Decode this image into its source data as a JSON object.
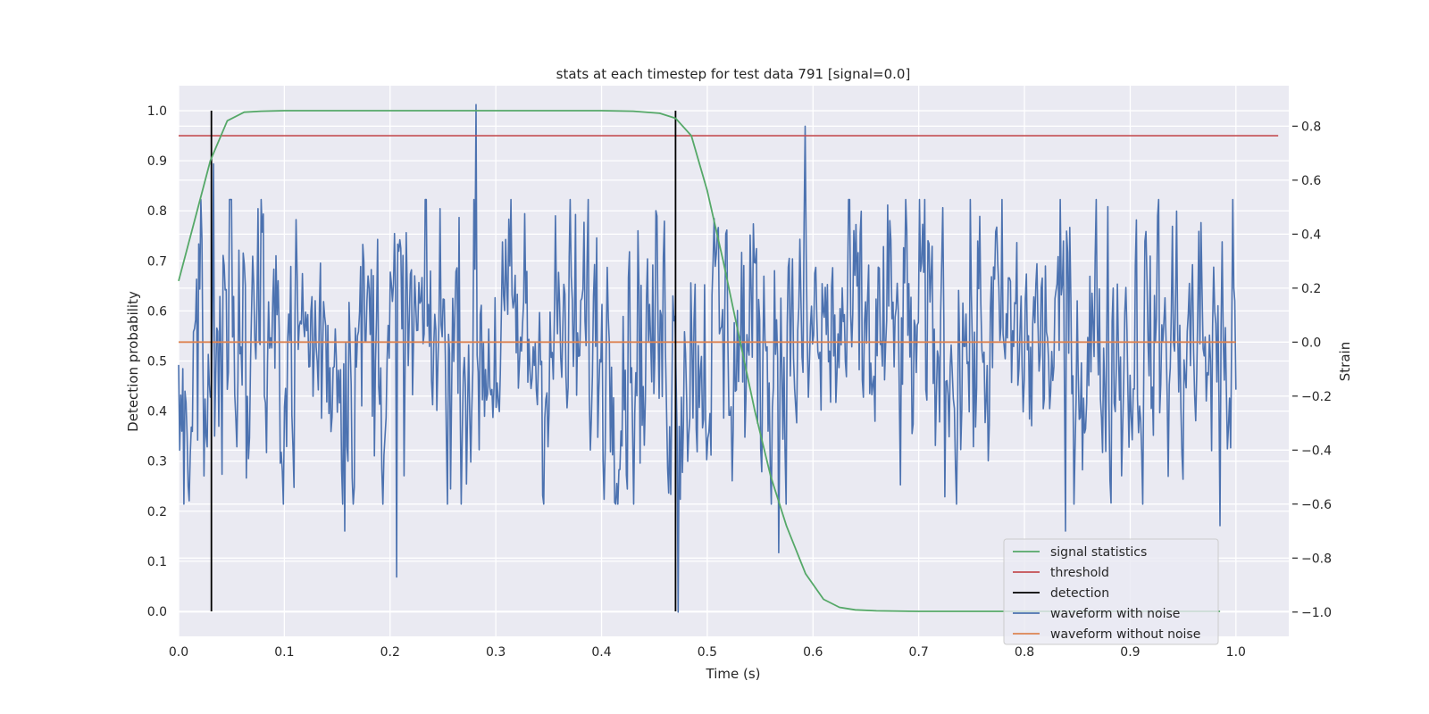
{
  "chart_data": {
    "type": "line",
    "title": "stats at each timestep for test data 791 [signal=0.0]",
    "xlabel": "Time (s)",
    "ylabel_left": "Detection probability",
    "ylabel_right": "Strain",
    "xlim": [
      0.0,
      1.05
    ],
    "ylim_left": [
      -0.05,
      1.05
    ],
    "ylim_right": [
      -1.09,
      0.95
    ],
    "x_ticks": [
      "0.0",
      "0.1",
      "0.2",
      "0.3",
      "0.4",
      "0.5",
      "0.6",
      "0.7",
      "0.8",
      "0.9",
      "1.0"
    ],
    "y_left_ticks": [
      "0.0",
      "0.1",
      "0.2",
      "0.3",
      "0.4",
      "0.5",
      "0.6",
      "0.7",
      "0.8",
      "0.9",
      "1.0"
    ],
    "y_right_ticks": [
      "−1.0",
      "−0.8",
      "−0.6",
      "−0.4",
      "−0.2",
      "0.0",
      "0.2",
      "0.4",
      "0.6",
      "0.8"
    ],
    "grid": true,
    "background": "#eaeaf2",
    "legend_position": "lower right",
    "series": [
      {
        "name": "signal statistics",
        "axis": "left",
        "color": "#55a868",
        "x": [
          0.0,
          0.015,
          0.03,
          0.046,
          0.062,
          0.078,
          0.1,
          0.15,
          0.2,
          0.3,
          0.4,
          0.43,
          0.455,
          0.47,
          0.485,
          0.5,
          0.515,
          0.53,
          0.545,
          0.56,
          0.575,
          0.593,
          0.61,
          0.625,
          0.64,
          0.66,
          0.7,
          0.8,
          0.9,
          0.985
        ],
        "y": [
          0.66,
          0.78,
          0.9,
          0.98,
          0.997,
          0.999,
          1.0,
          1.0,
          1.0,
          1.0,
          1.0,
          0.999,
          0.995,
          0.985,
          0.95,
          0.84,
          0.7,
          0.55,
          0.4,
          0.27,
          0.17,
          0.075,
          0.024,
          0.008,
          0.003,
          0.001,
          0.0,
          0.0,
          0.0,
          0.0
        ]
      },
      {
        "name": "threshold",
        "axis": "left",
        "color": "#c44e52",
        "x": [
          0.0,
          1.04
        ],
        "y": [
          0.95,
          0.95
        ]
      },
      {
        "name": "detection",
        "axis": "left",
        "color": "#000000",
        "segments": [
          {
            "x": 0.031,
            "y": [
              0.0,
              1.0
            ]
          },
          {
            "x": 0.47,
            "y": [
              0.0,
              1.0
            ]
          }
        ]
      },
      {
        "name": "waveform with noise",
        "axis": "right",
        "color": "#4c72b0",
        "points": 1000,
        "x_range": [
          0.0,
          1.0
        ],
        "y_range": [
          -1.0,
          0.88
        ],
        "peaks": [
          {
            "x": 0.281,
            "y": 0.88
          },
          {
            "x": 0.593,
            "y": 0.8
          },
          {
            "x": 0.472,
            "y": -1.0
          },
          {
            "x": 0.206,
            "y": -0.87
          },
          {
            "x": 0.033,
            "y": 0.66
          },
          {
            "x": 0.157,
            "y": -0.7
          },
          {
            "x": 0.568,
            "y": -0.78
          },
          {
            "x": 0.839,
            "y": -0.7
          },
          {
            "x": 0.985,
            "y": -0.68
          }
        ]
      },
      {
        "name": "waveform without noise",
        "axis": "right",
        "color": "#dd8452",
        "x": [
          0.0,
          1.0
        ],
        "y": [
          0.0,
          0.0
        ]
      }
    ]
  }
}
